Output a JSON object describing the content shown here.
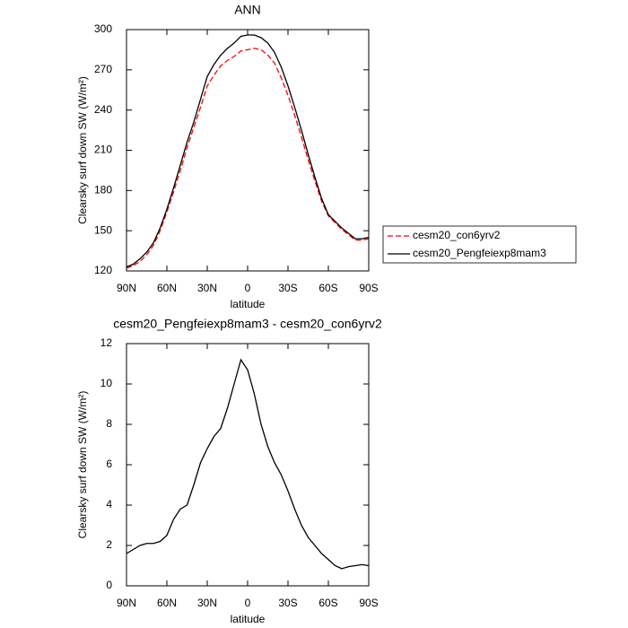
{
  "chart_data": [
    {
      "type": "line",
      "title": "ANN",
      "x_label": "latitude",
      "y_label": "Clearsky surf down SW (W/m²)",
      "x": [
        90,
        85,
        80,
        75,
        70,
        65,
        60,
        55,
        50,
        45,
        40,
        35,
        30,
        25,
        20,
        15,
        10,
        5,
        0,
        -5,
        -10,
        -15,
        -20,
        -25,
        -30,
        -35,
        -40,
        -45,
        -50,
        -55,
        -60,
        -65,
        -70,
        -75,
        -80,
        -85,
        -90
      ],
      "series": [
        {
          "name": "cesm20_con6yrv2",
          "color": "#ff0000",
          "dashed": true,
          "values": [
            122,
            124,
            127,
            132,
            139,
            150,
            164,
            179,
            195,
            212,
            227,
            242,
            258,
            266,
            273,
            277,
            280,
            284,
            285,
            286,
            285,
            281,
            275,
            264,
            251,
            236,
            220,
            203,
            187,
            172,
            161,
            156,
            151,
            147,
            143,
            143,
            144
          ]
        },
        {
          "name": "cesm20_Pengfeiexp8mam3",
          "color": "#000000",
          "dashed": false,
          "values": [
            123,
            125,
            129,
            134,
            141,
            152,
            166,
            182,
            199,
            216,
            231,
            248,
            265,
            274,
            281,
            286,
            290,
            295,
            296,
            296,
            294,
            290,
            283,
            272,
            258,
            242,
            225,
            207,
            190,
            174,
            162,
            157,
            152,
            148,
            144,
            144,
            145
          ]
        }
      ],
      "xlim": [
        90,
        -90
      ],
      "xticks": [
        {
          "value": 90,
          "label": "90N"
        },
        {
          "value": 60,
          "label": "60N"
        },
        {
          "value": 30,
          "label": "30N"
        },
        0,
        {
          "value": -30,
          "label": "30S"
        },
        {
          "value": -60,
          "label": "60S"
        },
        {
          "value": -90,
          "label": "90S"
        }
      ],
      "ylim": [
        120,
        300
      ],
      "yticks": [
        120,
        150,
        180,
        210,
        240,
        270,
        300
      ],
      "grid": false,
      "legend": "right"
    },
    {
      "type": "line",
      "title": "cesm20_Pengfeiexp8mam3 - cesm20_con6yrv2",
      "x_label": "latitude",
      "y_label": "Clearsky surf down SW (W/m²)",
      "x": [
        90,
        85,
        80,
        75,
        70,
        65,
        60,
        55,
        50,
        45,
        40,
        35,
        30,
        25,
        20,
        15,
        10,
        5,
        0,
        -5,
        -10,
        -15,
        -20,
        -25,
        -30,
        -35,
        -40,
        -45,
        -50,
        -55,
        -60,
        -65,
        -70,
        -75,
        -80,
        -85,
        -90
      ],
      "series": [
        {
          "color": "#000000",
          "dashed": false,
          "values": [
            1.6,
            1.8,
            2.0,
            2.1,
            2.1,
            2.2,
            2.5,
            3.3,
            3.8,
            4.0,
            5.0,
            6.1,
            6.8,
            7.4,
            7.8,
            8.8,
            10.0,
            11.2,
            10.7,
            9.5,
            8.0,
            6.9,
            6.1,
            5.5,
            4.7,
            3.8,
            3.0,
            2.4,
            2.0,
            1.6,
            1.3,
            1.0,
            0.85,
            0.95,
            1.0,
            1.05,
            1.0
          ]
        }
      ],
      "xlim": [
        90,
        -90
      ],
      "xticks": [
        {
          "value": 90,
          "label": "90N"
        },
        {
          "value": 60,
          "label": "60N"
        },
        {
          "value": 30,
          "label": "30N"
        },
        0,
        {
          "value": -30,
          "label": "30S"
        },
        {
          "value": -60,
          "label": "60S"
        },
        {
          "value": -90,
          "label": "90S"
        }
      ],
      "ylim": [
        0,
        12
      ],
      "yticks": [
        0,
        2,
        4,
        6,
        8,
        10,
        12
      ],
      "grid": false
    }
  ]
}
